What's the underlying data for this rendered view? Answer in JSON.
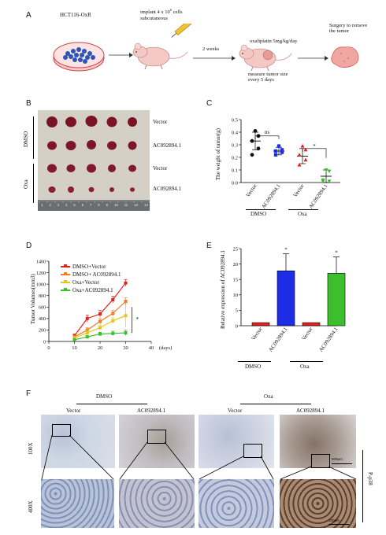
{
  "panel_a": {
    "letter": "A",
    "cell_line": "HCT116-OxR",
    "implant_text": [
      "implant 4 x 10",
      "6",
      " cells",
      "subcutaneous"
    ],
    "interval": "2 weeks",
    "treatment": "oxaliplatin 5mg/kg/day",
    "measure_text": [
      "measure tumor size",
      "every 5 days"
    ],
    "surgery_text": [
      "Surgery to remove",
      "the tumor"
    ]
  },
  "panel_b": {
    "letter": "B",
    "row_labels": [
      "Vector",
      "AC092894.1",
      "Vector",
      "AC092894.1"
    ],
    "group_labels": [
      "DMSO",
      "Oxa"
    ],
    "ruler_numbers": [
      "1",
      "2",
      "3",
      "4",
      "5",
      "6",
      "7",
      "8",
      "9",
      "10",
      "11",
      "12",
      "13"
    ]
  },
  "panel_c": {
    "letter": "C",
    "ylabel": "The weight of tumor(g)",
    "yticks": [
      "0.0",
      "0.1",
      "0.2",
      "0.3",
      "0.4",
      "0.5"
    ],
    "categories": [
      "Vector",
      "AC092894.1",
      "Vector",
      "AC092894.1"
    ],
    "group_labels": [
      "DMSO",
      "Oxa"
    ],
    "sig_ns": "ns",
    "sig_star": "*"
  },
  "panel_d": {
    "letter": "D",
    "ylabel": "Tumor Volumes(mm3)",
    "xlabel": "(days)",
    "yticks": [
      "0",
      "200",
      "400",
      "600",
      "800",
      "1000",
      "1200",
      "1400"
    ],
    "xticks": [
      "0",
      "10",
      "20",
      "30",
      "40"
    ],
    "sig": "*"
  },
  "panel_e": {
    "letter": "E",
    "ylabel": "Relative expression of AC092894.1",
    "yticks": [
      "0",
      "5",
      "10",
      "15",
      "20",
      "25"
    ],
    "categories": [
      "Vector",
      "AC092894.1",
      "Vector",
      "AC092894.1"
    ],
    "group_labels": [
      "DMSO",
      "Oxa"
    ],
    "stars": [
      "*",
      "*"
    ]
  },
  "panel_f": {
    "letter": "F",
    "group_labels": [
      "DMSO",
      "Oxa"
    ],
    "column_labels": [
      "Vector",
      "AC092894.1",
      "Vector",
      "AC092894.1"
    ],
    "row_labels": [
      "100X",
      "400X"
    ],
    "side_label": "P-p38",
    "scale_bars": [
      "500μm",
      "100μm"
    ]
  },
  "colors": {
    "red": "#e8201a",
    "orange": "#f47b20",
    "yellow": "#e6c619",
    "green": "#3cbf2c",
    "blue": "#1d2de6",
    "black": "#111111"
  },
  "chart_data": [
    {
      "type": "scatter",
      "panel": "C",
      "ylabel": "The weight of tumor(g)",
      "ylim": [
        0,
        0.5
      ],
      "categories": [
        "Vector",
        "AC092894.1",
        "Vector",
        "AC092894.1"
      ],
      "groups": [
        "DMSO",
        "DMSO",
        "Oxa",
        "Oxa"
      ],
      "series": [
        {
          "category": "Vector",
          "color": "#111111",
          "marker": "circle",
          "points": [
            0.41,
            0.37,
            0.33,
            0.27,
            0.22
          ],
          "mean": 0.33,
          "sd": 0.07
        },
        {
          "category": "AC092894.1",
          "color": "#1d2de6",
          "marker": "square",
          "points": [
            0.29,
            0.26,
            0.25,
            0.24,
            0.22
          ],
          "mean": 0.25,
          "sd": 0.03
        },
        {
          "category": "Vector",
          "color": "#e8201a",
          "marker": "triangle",
          "points": [
            0.29,
            0.26,
            0.22,
            0.18,
            0.14
          ],
          "mean": 0.21,
          "sd": 0.06
        },
        {
          "category": "AC092894.1",
          "color": "#3cbf2c",
          "marker": "triangle-down",
          "points": [
            0.1,
            0.09,
            0.02,
            0.01,
            0.01
          ],
          "mean": 0.05,
          "sd": 0.05
        }
      ],
      "annotations": [
        {
          "text": "ns",
          "between": [
            0,
            1
          ]
        },
        {
          "text": "*",
          "between": [
            2,
            3
          ]
        }
      ]
    },
    {
      "type": "line",
      "panel": "D",
      "ylabel": "Tumor Volumes(mm3)",
      "xlabel": "(days)",
      "xlim": [
        0,
        40
      ],
      "ylim": [
        0,
        1400
      ],
      "x": [
        10,
        15,
        20,
        25,
        30
      ],
      "series": [
        {
          "name": "DMSO+Vector",
          "color": "#e8201a",
          "values": [
            100,
            400,
            480,
            730,
            1020
          ],
          "err": [
            30,
            60,
            60,
            60,
            60
          ]
        },
        {
          "name": "DMSO+ AC092894.1",
          "color": "#f47b20",
          "values": [
            80,
            200,
            350,
            490,
            700
          ],
          "err": [
            20,
            40,
            50,
            50,
            60
          ]
        },
        {
          "name": "Oxa+Vector",
          "color": "#e6c619",
          "values": [
            60,
            150,
            240,
            360,
            450
          ],
          "err": [
            20,
            40,
            40,
            50,
            200
          ]
        },
        {
          "name": "Oxa+AC092894.1",
          "color": "#3cbf2c",
          "values": [
            30,
            80,
            130,
            140,
            150
          ],
          "err": [
            10,
            20,
            30,
            40,
            50
          ]
        }
      ],
      "annotations": [
        {
          "text": "*"
        }
      ]
    },
    {
      "type": "bar",
      "panel": "E",
      "ylabel": "Relative expression of AC092894.1",
      "ylim": [
        0,
        25
      ],
      "categories": [
        "Vector",
        "AC092894.1",
        "Vector",
        "AC092894.1"
      ],
      "groups": [
        "DMSO",
        "DMSO",
        "Oxa",
        "Oxa"
      ],
      "values": [
        1.0,
        17.8,
        1.0,
        17.0
      ],
      "errors": [
        0.1,
        5.5,
        0.1,
        5.3
      ],
      "colors": [
        "#e8201a",
        "#1d2de6",
        "#e8201a",
        "#3cbf2c"
      ],
      "annotations": [
        "",
        "*",
        "",
        "*"
      ]
    }
  ]
}
